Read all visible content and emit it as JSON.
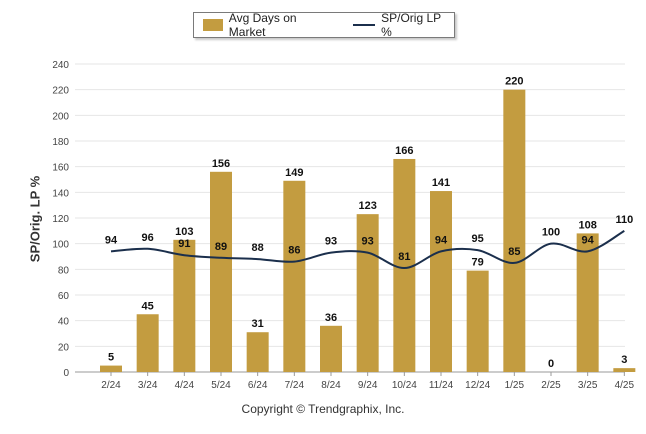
{
  "chart_data": {
    "type": "bar",
    "categories": [
      "2/24",
      "3/24",
      "4/24",
      "5/24",
      "6/24",
      "7/24",
      "8/24",
      "9/24",
      "10/24",
      "11/24",
      "12/24",
      "1/25",
      "2/25",
      "3/25",
      "4/25"
    ],
    "series": [
      {
        "name": "Avg Days on Market",
        "type": "bar",
        "color": "#c39c40",
        "values": [
          5,
          45,
          103,
          156,
          31,
          149,
          36,
          123,
          166,
          141,
          79,
          220,
          0,
          108,
          3
        ]
      },
      {
        "name": "SP/Orig LP %",
        "type": "line",
        "color": "#1b2f4c",
        "values": [
          94,
          96,
          91,
          89,
          88,
          86,
          93,
          93,
          81,
          94,
          95,
          85,
          100,
          94,
          110
        ]
      }
    ],
    "ylabel": "SP/Orig. LP %",
    "ylim": [
      0,
      240
    ],
    "yticks": [
      0,
      20,
      40,
      60,
      80,
      100,
      120,
      140,
      160,
      180,
      200,
      220,
      240
    ],
    "grid": true,
    "legend": "top-center"
  },
  "legend": {
    "bar_label": "Avg Days on Market",
    "line_label": "SP/Orig LP %"
  },
  "copyright": "Copyright © Trendgraphix, Inc."
}
